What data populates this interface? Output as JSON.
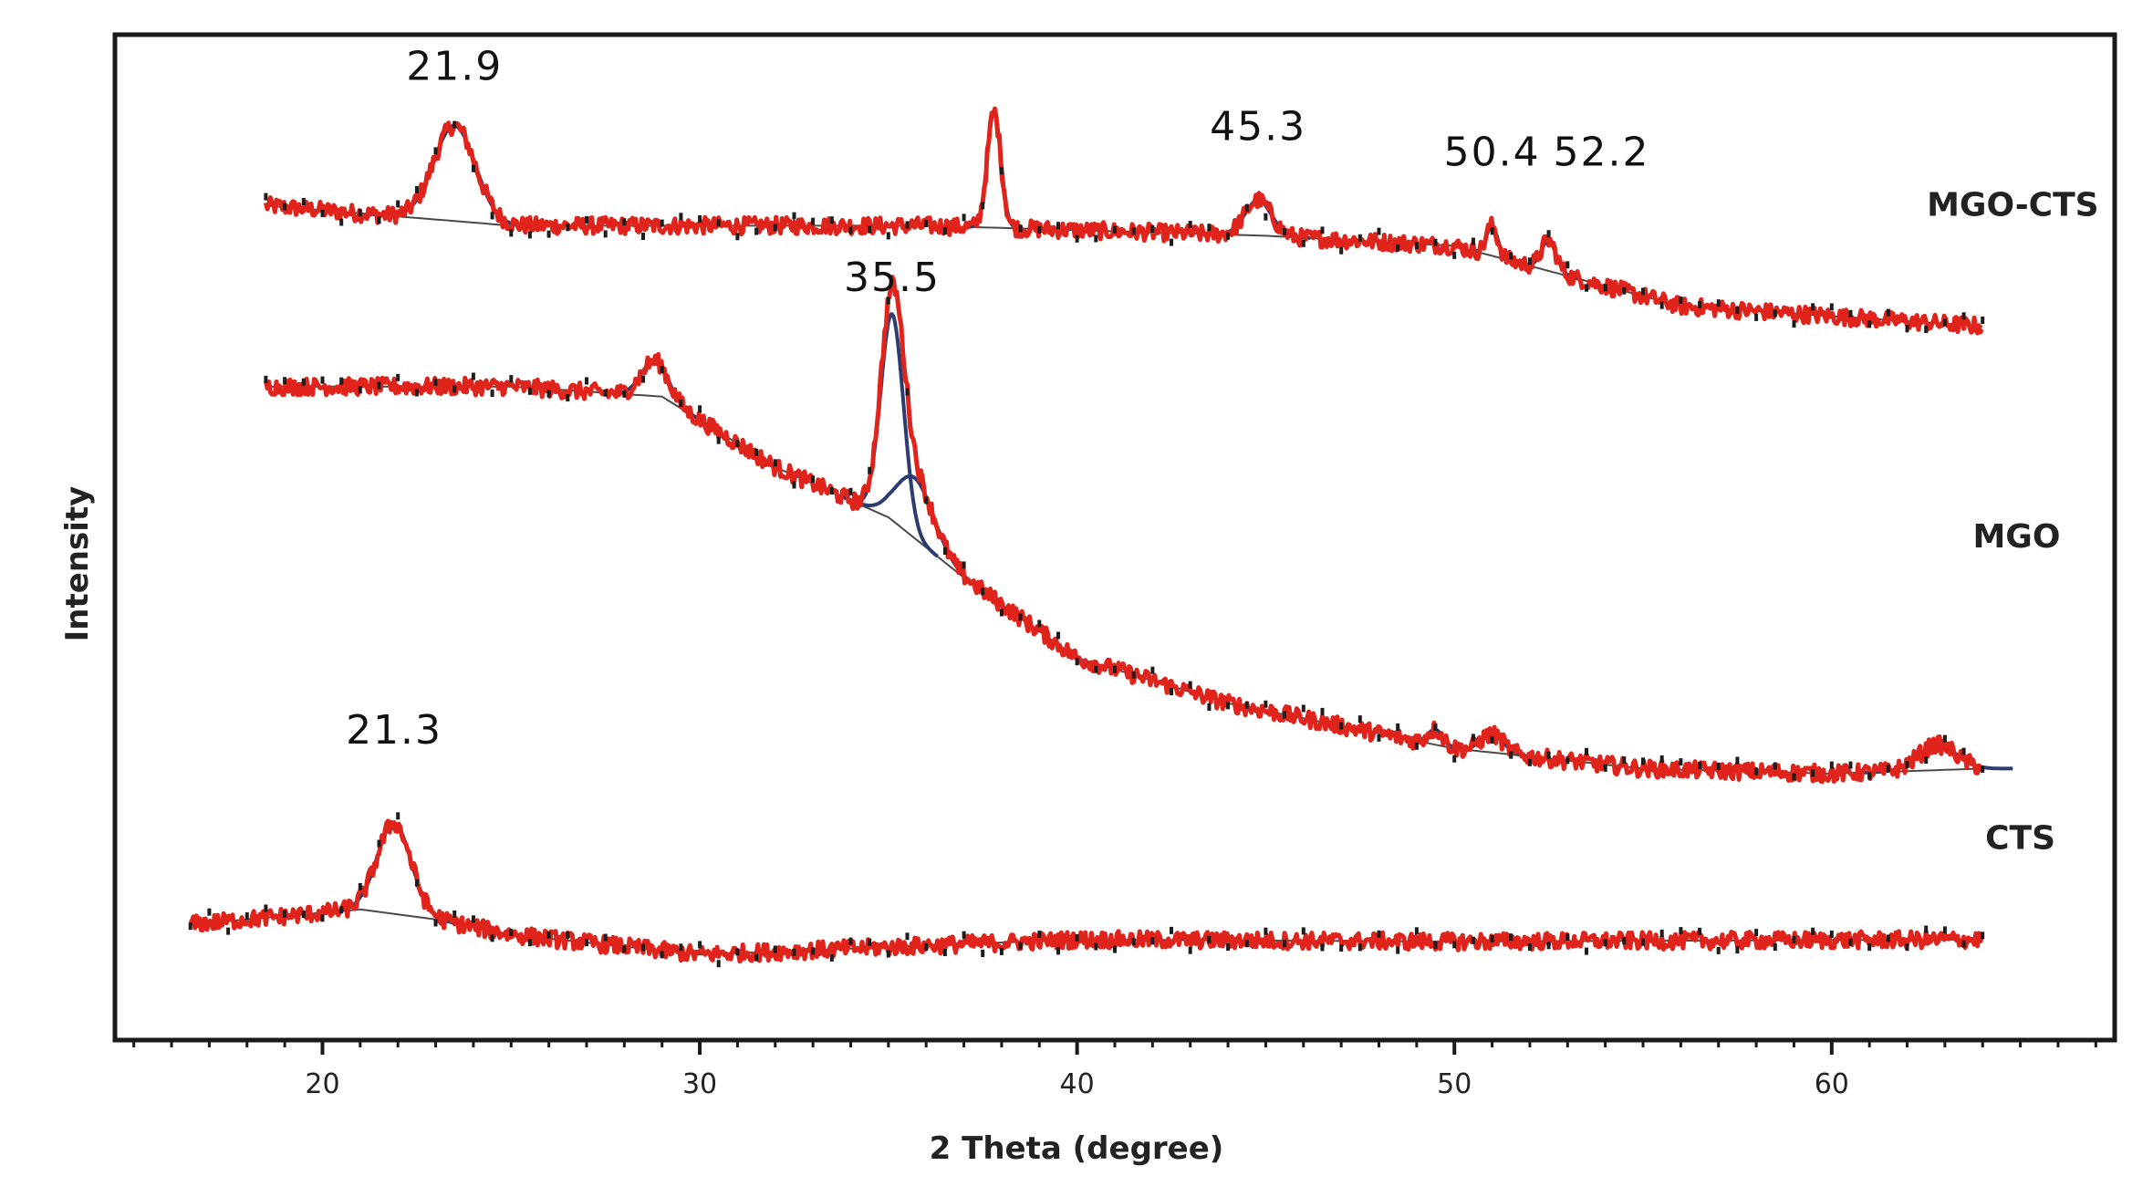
{
  "chart_data": {
    "type": "line",
    "title": "",
    "xlabel": "2 Theta (degree)",
    "ylabel": "Intensity",
    "xlim": [
      14.5,
      67.5
    ],
    "ylim": [
      0,
      100
    ],
    "x_ticks": [
      20,
      30,
      40,
      50,
      60
    ],
    "grid": false,
    "legend": "none",
    "series": [
      {
        "name": "MGO-CTS",
        "color": "#e0241b",
        "baseline_color": "#4a4a4a",
        "x_range": [
          18.5,
          64
        ],
        "background": [
          [
            18.5,
            83
          ],
          [
            25,
            81
          ],
          [
            36,
            81
          ],
          [
            45,
            80
          ],
          [
            50,
            79
          ],
          [
            53,
            76
          ],
          [
            56,
            73
          ],
          [
            64,
            71
          ]
        ],
        "peaks": [
          {
            "x": 23.5,
            "height": 9.5,
            "width": 0.55
          },
          {
            "x": 37.8,
            "height": 11.5,
            "width": 0.18
          },
          {
            "x": 44.8,
            "height": 3.5,
            "width": 0.35
          },
          {
            "x": 51.0,
            "height": 3.0,
            "width": 0.15
          },
          {
            "x": 52.5,
            "height": 3.0,
            "width": 0.2
          }
        ]
      },
      {
        "name": "MGO",
        "color": "#e0241b",
        "baseline_color": "#4a4a4a",
        "x_range": [
          18.5,
          64
        ],
        "background": [
          [
            18.5,
            65
          ],
          [
            25,
            65
          ],
          [
            29,
            64
          ],
          [
            32,
            57
          ],
          [
            35,
            52
          ],
          [
            37,
            46
          ],
          [
            40,
            38
          ],
          [
            44,
            33.5
          ],
          [
            50,
            29
          ],
          [
            55,
            27
          ],
          [
            60,
            26.5
          ],
          [
            64,
            27
          ]
        ],
        "peaks": [
          {
            "x": 28.8,
            "height": 3.5,
            "width": 0.35
          },
          {
            "x": 35.1,
            "height": 20.5,
            "width": 0.3
          },
          {
            "x": 35.7,
            "height": 6.0,
            "width": 0.5
          },
          {
            "x": 49.5,
            "height": 1.5,
            "width": 0.2
          },
          {
            "x": 51.0,
            "height": 1.8,
            "width": 0.3
          },
          {
            "x": 62.8,
            "height": 2.5,
            "width": 0.5
          }
        ]
      },
      {
        "name": "CTS",
        "color": "#e0241b",
        "baseline_color": "#4a4a4a",
        "x_range": [
          16.5,
          64
        ],
        "background": [
          [
            16.5,
            11.5
          ],
          [
            21,
            13
          ],
          [
            23,
            12
          ],
          [
            25,
            10.5
          ],
          [
            30,
            8.5
          ],
          [
            40,
            10
          ],
          [
            50,
            9.8
          ],
          [
            64,
            10
          ]
        ],
        "peaks": [
          {
            "x": 21.9,
            "height": 9.0,
            "width": 0.45
          }
        ]
      }
    ],
    "annotations": [
      {
        "text": "21.9",
        "x": 23.5,
        "y": 95.5
      },
      {
        "text": "45.3",
        "x": 44.8,
        "y": 89.5
      },
      {
        "text": "50.4",
        "x": 51.0,
        "y": 87.0
      },
      {
        "text": "52.2",
        "x": 53.9,
        "y": 87.0
      },
      {
        "text": "35.5",
        "x": 35.1,
        "y": 74.5
      },
      {
        "text": "21.3",
        "x": 21.9,
        "y": 29.5
      }
    ],
    "series_labels": [
      {
        "text": "MGO-CTS",
        "x": 64.8,
        "y": 82
      },
      {
        "text": "MGO",
        "x": 64.9,
        "y": 49
      },
      {
        "text": "CTS",
        "x": 65.0,
        "y": 19
      }
    ]
  }
}
